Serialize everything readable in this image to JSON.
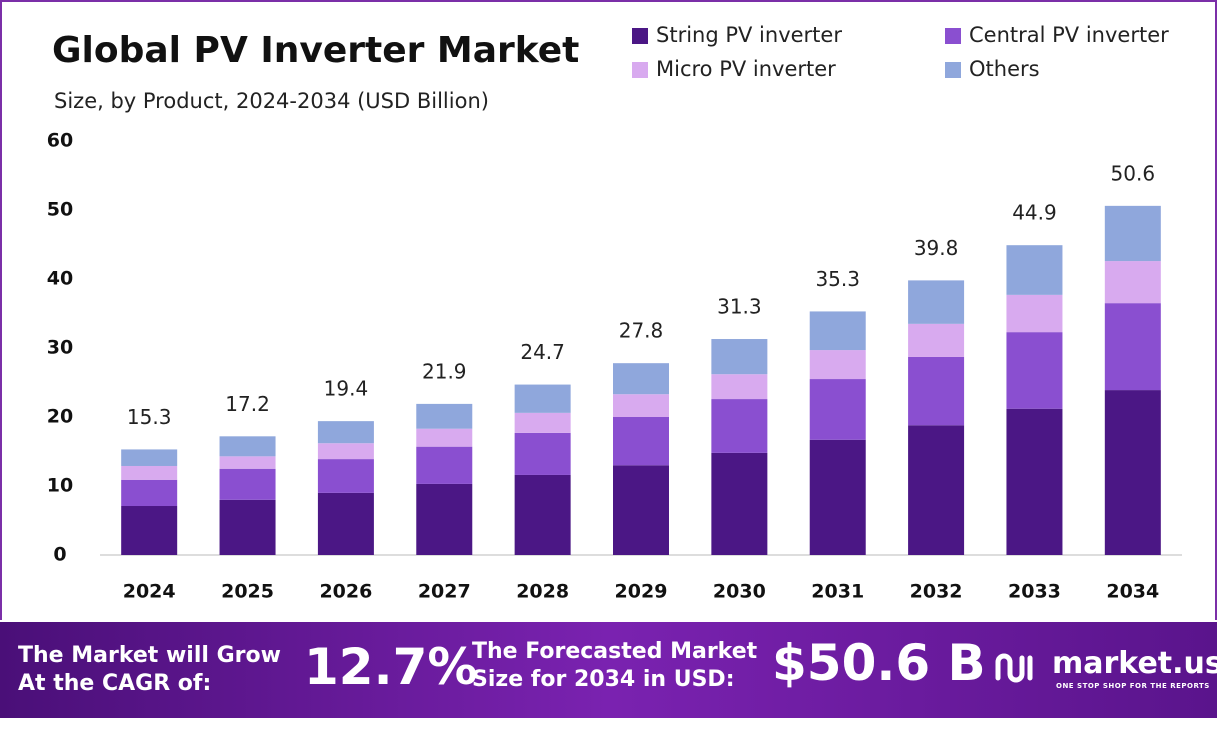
{
  "chart_data": {
    "type": "stacked_bar",
    "title": "Global PV Inverter Market",
    "subtitle": "Size, by Product, 2024-2034 (USD Billion)",
    "categories": [
      "2024",
      "2025",
      "2026",
      "2027",
      "2028",
      "2029",
      "2030",
      "2031",
      "2032",
      "2033",
      "2034"
    ],
    "series": [
      {
        "name": "String PV inverter",
        "color": "#4b1785",
        "values": [
          7.1,
          8.0,
          9.0,
          10.3,
          11.6,
          13.0,
          14.8,
          16.7,
          18.8,
          21.2,
          23.9
        ]
      },
      {
        "name": "Central PV inverter",
        "color": "#8a4fd0",
        "values": [
          3.8,
          4.5,
          4.9,
          5.4,
          6.1,
          7.0,
          7.8,
          8.8,
          9.9,
          11.1,
          12.6
        ]
      },
      {
        "name": "Micro PV inverter",
        "color": "#d8aaef",
        "values": [
          2.0,
          1.8,
          2.3,
          2.6,
          2.9,
          3.3,
          3.6,
          4.2,
          4.8,
          5.4,
          6.1
        ]
      },
      {
        "name": "Others",
        "color": "#8fa7dc",
        "values": [
          2.4,
          2.9,
          3.2,
          3.6,
          4.1,
          4.5,
          5.1,
          5.6,
          6.3,
          7.2,
          8.0
        ]
      }
    ],
    "totals": [
      15.3,
      17.2,
      19.4,
      21.9,
      24.7,
      27.8,
      31.3,
      35.3,
      39.8,
      44.9,
      50.6
    ],
    "ylim": [
      0,
      60
    ],
    "yticks": [
      0,
      10,
      20,
      30,
      40,
      50,
      60
    ],
    "grid": false
  },
  "footer": {
    "cagr_label": [
      "The Market will Grow",
      "At the CAGR of:"
    ],
    "cagr": "12.7%",
    "forecast_label": [
      "The Forecasted Market",
      "Size for 2034 in USD:"
    ],
    "forecast": "$50.6 B",
    "brand": "market.us",
    "tagline": "ONE STOP SHOP FOR THE REPORTS"
  }
}
